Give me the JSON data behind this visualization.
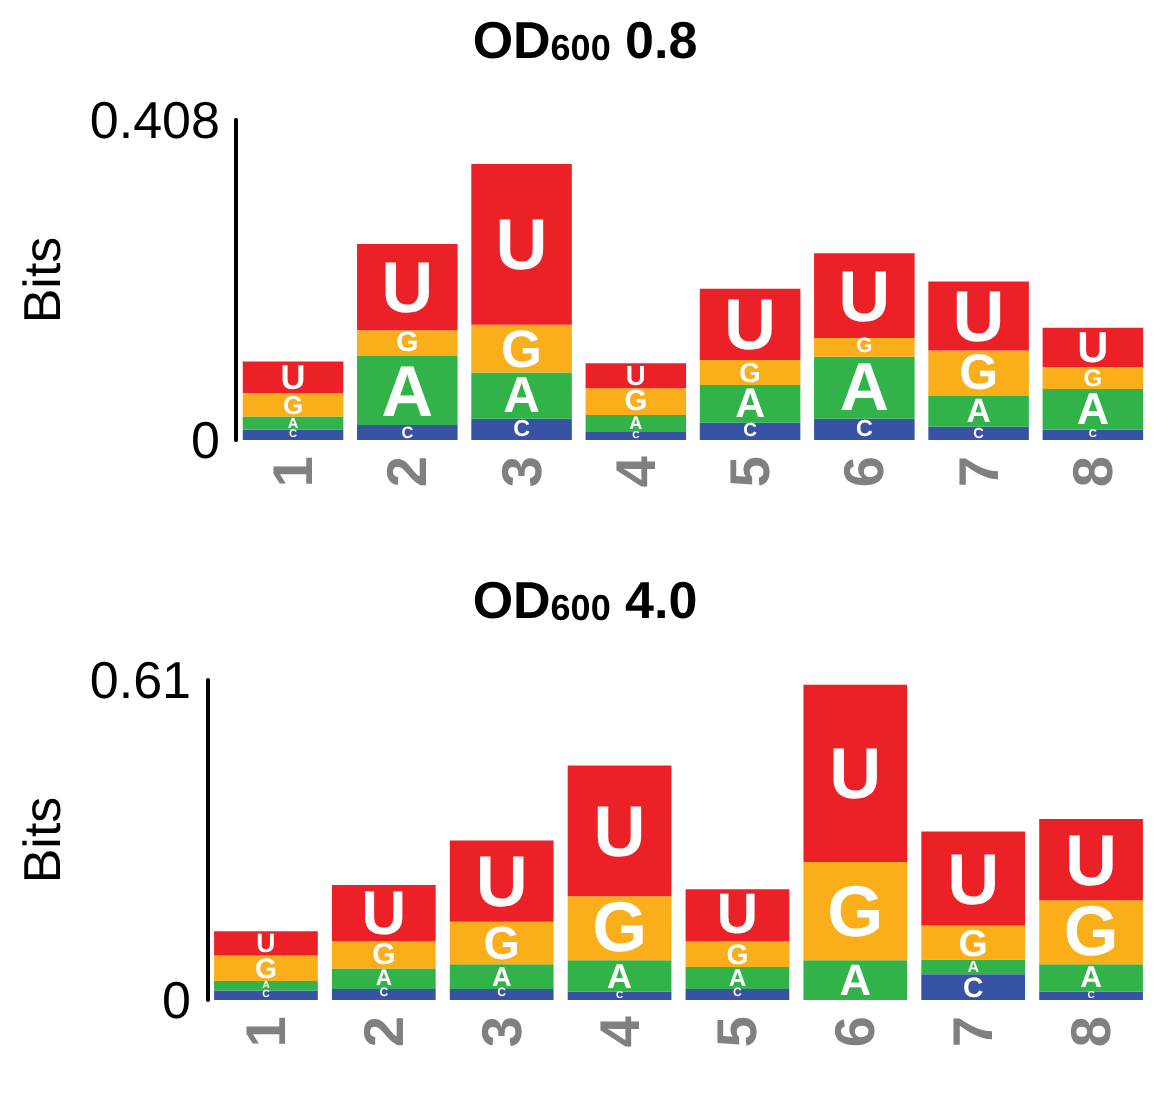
{
  "chart_data": [
    {
      "type": "bar",
      "title": "OD$_{600}$ 0.8",
      "ylabel": "Bits",
      "stacked": true,
      "categories": [
        "1",
        "2",
        "3",
        "4",
        "5",
        "6",
        "7",
        "8"
      ],
      "ylim": [
        0,
        0.408
      ],
      "yticks": [
        0,
        0.408
      ],
      "series": [
        {
          "name": "C",
          "color": "#3953a4",
          "values": [
            0.013,
            0.019,
            0.027,
            0.011,
            0.022,
            0.027,
            0.017,
            0.013
          ]
        },
        {
          "name": "A",
          "color": "#32b34a",
          "values": [
            0.017,
            0.088,
            0.059,
            0.021,
            0.048,
            0.079,
            0.039,
            0.052
          ]
        },
        {
          "name": "G",
          "color": "#f9ae1a",
          "values": [
            0.03,
            0.033,
            0.061,
            0.034,
            0.032,
            0.024,
            0.058,
            0.028
          ]
        },
        {
          "name": "U",
          "color": "#ec2027",
          "values": [
            0.04,
            0.11,
            0.205,
            0.032,
            0.091,
            0.108,
            0.088,
            0.05
          ]
        }
      ]
    },
    {
      "type": "bar",
      "title": "OD$_{600}$ 4.0",
      "ylabel": "Bits",
      "stacked": true,
      "categories": [
        "1",
        "2",
        "3",
        "4",
        "5",
        "6",
        "7",
        "8"
      ],
      "ylim": [
        0,
        0.61
      ],
      "yticks": [
        0,
        0.61
      ],
      "series": [
        {
          "name": "C",
          "color": "#3953a4",
          "values": [
            0.018,
            0.021,
            0.021,
            0.016,
            0.021,
            0,
            0.049,
            0.016
          ]
        },
        {
          "name": "A",
          "color": "#32b34a",
          "values": [
            0.018,
            0.039,
            0.047,
            0.06,
            0.042,
            0.076,
            0.028,
            0.052
          ]
        },
        {
          "name": "G",
          "color": "#f9ae1a",
          "values": [
            0.049,
            0.052,
            0.081,
            0.122,
            0.049,
            0.187,
            0.065,
            0.122
          ]
        },
        {
          "name": "U",
          "color": "#ec2027",
          "values": [
            0.046,
            0.107,
            0.155,
            0.249,
            0.099,
            0.338,
            0.179,
            0.155
          ]
        }
      ]
    }
  ]
}
